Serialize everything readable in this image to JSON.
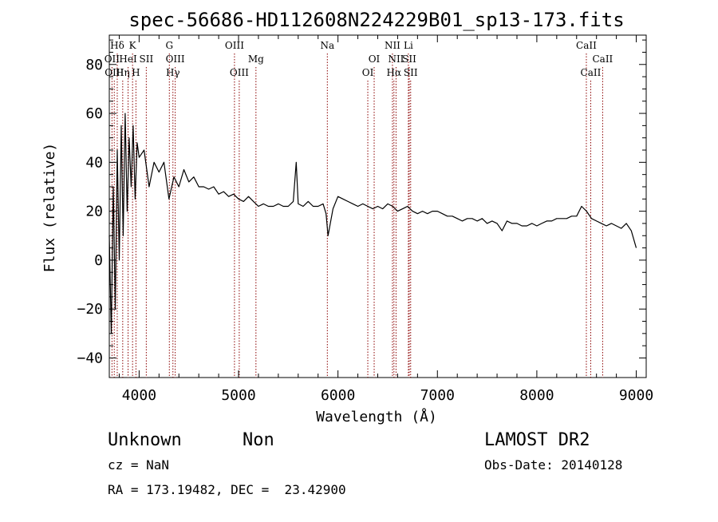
{
  "chart_data": {
    "type": "line",
    "title": "spec-56686-HD112608N224229B01_sp13-173.fits",
    "xlabel": "Wavelength (Å)",
    "ylabel": "Flux (relative)",
    "xlim": [
      3700,
      9100
    ],
    "ylim": [
      -48,
      92
    ],
    "x_ticks": [
      4000,
      5000,
      6000,
      7000,
      8000,
      9000
    ],
    "y_ticks": [
      -40,
      -20,
      0,
      20,
      40,
      60,
      80
    ],
    "grid": false,
    "series_color": "#000000",
    "line_marker_color": "#8b0000",
    "series": [
      {
        "x": [
          3700,
          3720,
          3740,
          3760,
          3780,
          3800,
          3820,
          3840,
          3860,
          3880,
          3900,
          3920,
          3940,
          3960,
          3980,
          4000,
          4050,
          4100,
          4150,
          4200,
          4250,
          4300,
          4350,
          4400,
          4450,
          4500,
          4550,
          4600,
          4650,
          4700,
          4750,
          4800,
          4850,
          4900,
          4950,
          5000,
          5050,
          5100,
          5150,
          5200,
          5250,
          5300,
          5350,
          5400,
          5450,
          5500,
          5550,
          5580,
          5600,
          5650,
          5700,
          5750,
          5800,
          5850,
          5880,
          5900,
          5950,
          6000,
          6050,
          6100,
          6150,
          6200,
          6250,
          6300,
          6350,
          6400,
          6450,
          6500,
          6550,
          6600,
          6650,
          6700,
          6750,
          6800,
          6850,
          6900,
          6950,
          7000,
          7050,
          7100,
          7150,
          7200,
          7250,
          7300,
          7350,
          7400,
          7450,
          7500,
          7550,
          7600,
          7650,
          7700,
          7750,
          7800,
          7850,
          7900,
          7950,
          8000,
          8050,
          8100,
          8150,
          8200,
          8250,
          8300,
          8350,
          8400,
          8450,
          8500,
          8550,
          8600,
          8650,
          8700,
          8750,
          8800,
          8850,
          8900,
          8950,
          9000
        ],
        "y": [
          10,
          -30,
          30,
          -20,
          45,
          0,
          55,
          10,
          60,
          20,
          50,
          30,
          55,
          25,
          48,
          42,
          45,
          30,
          40,
          36,
          40,
          25,
          34,
          30,
          37,
          32,
          34,
          30,
          30,
          29,
          30,
          27,
          28,
          26,
          27,
          25,
          24,
          26,
          24,
          22,
          23,
          22,
          22,
          23,
          22,
          22,
          24,
          40,
          23,
          22,
          24,
          22,
          22,
          23,
          19,
          10,
          21,
          26,
          25,
          24,
          23,
          22,
          23,
          22,
          21,
          22,
          21,
          23,
          22,
          20,
          21,
          22,
          20,
          19,
          20,
          19,
          20,
          20,
          19,
          18,
          18,
          17,
          16,
          17,
          17,
          16,
          17,
          15,
          16,
          15,
          12,
          16,
          15,
          15,
          14,
          14,
          15,
          14,
          15,
          16,
          16,
          17,
          17,
          17,
          18,
          18,
          22,
          20,
          17,
          16,
          15,
          14,
          15,
          14,
          13,
          15,
          12,
          5
        ]
      }
    ],
    "spectral_lines": [
      {
        "label": "Hδ",
        "x": 3780,
        "row": 0
      },
      {
        "label": "K",
        "x": 3934,
        "row": 0
      },
      {
        "label": "OII",
        "x": 3727,
        "row": 1
      },
      {
        "label": "HeI",
        "x": 3889,
        "row": 1
      },
      {
        "label": "SII",
        "x": 4072,
        "row": 1
      },
      {
        "label": "OIII",
        "x": 3750,
        "row": 2
      },
      {
        "label": "Hη",
        "x": 3835,
        "row": 2
      },
      {
        "label": "H",
        "x": 3968,
        "row": 2
      },
      {
        "label": "G",
        "x": 4304,
        "row": 0
      },
      {
        "label": "OIII",
        "x": 4363,
        "row": 1
      },
      {
        "label": "Hγ",
        "x": 4340,
        "row": 2
      },
      {
        "label": "OIII",
        "x": 4959,
        "row": 0
      },
      {
        "label": "OIII",
        "x": 5007,
        "row": 2
      },
      {
        "label": "Mg",
        "x": 5175,
        "row": 1
      },
      {
        "label": "Na",
        "x": 5893,
        "row": 0
      },
      {
        "label": "OI",
        "x": 6364,
        "row": 1
      },
      {
        "label": "OI",
        "x": 6300,
        "row": 2
      },
      {
        "label": "NII",
        "x": 6548,
        "row": 0
      },
      {
        "label": "NII",
        "x": 6584,
        "row": 1
      },
      {
        "label": "Hα",
        "x": 6563,
        "row": 2
      },
      {
        "label": "Li",
        "x": 6708,
        "row": 0
      },
      {
        "label": "SII",
        "x": 6717,
        "row": 1
      },
      {
        "label": "SII",
        "x": 6731,
        "row": 2
      },
      {
        "label": "CaII",
        "x": 8498,
        "row": 0
      },
      {
        "label": "CaII",
        "x": 8662,
        "row": 1
      },
      {
        "label": "CaII",
        "x": 8542,
        "row": 2
      }
    ]
  },
  "footer": {
    "object_class": "Unknown",
    "object_subclass": "Non",
    "survey": "LAMOST DR2",
    "cz": "cz = NaN",
    "obs_date": "Obs-Date: 20140128",
    "coords": "RA = 173.19482, DEC =  23.42900"
  }
}
